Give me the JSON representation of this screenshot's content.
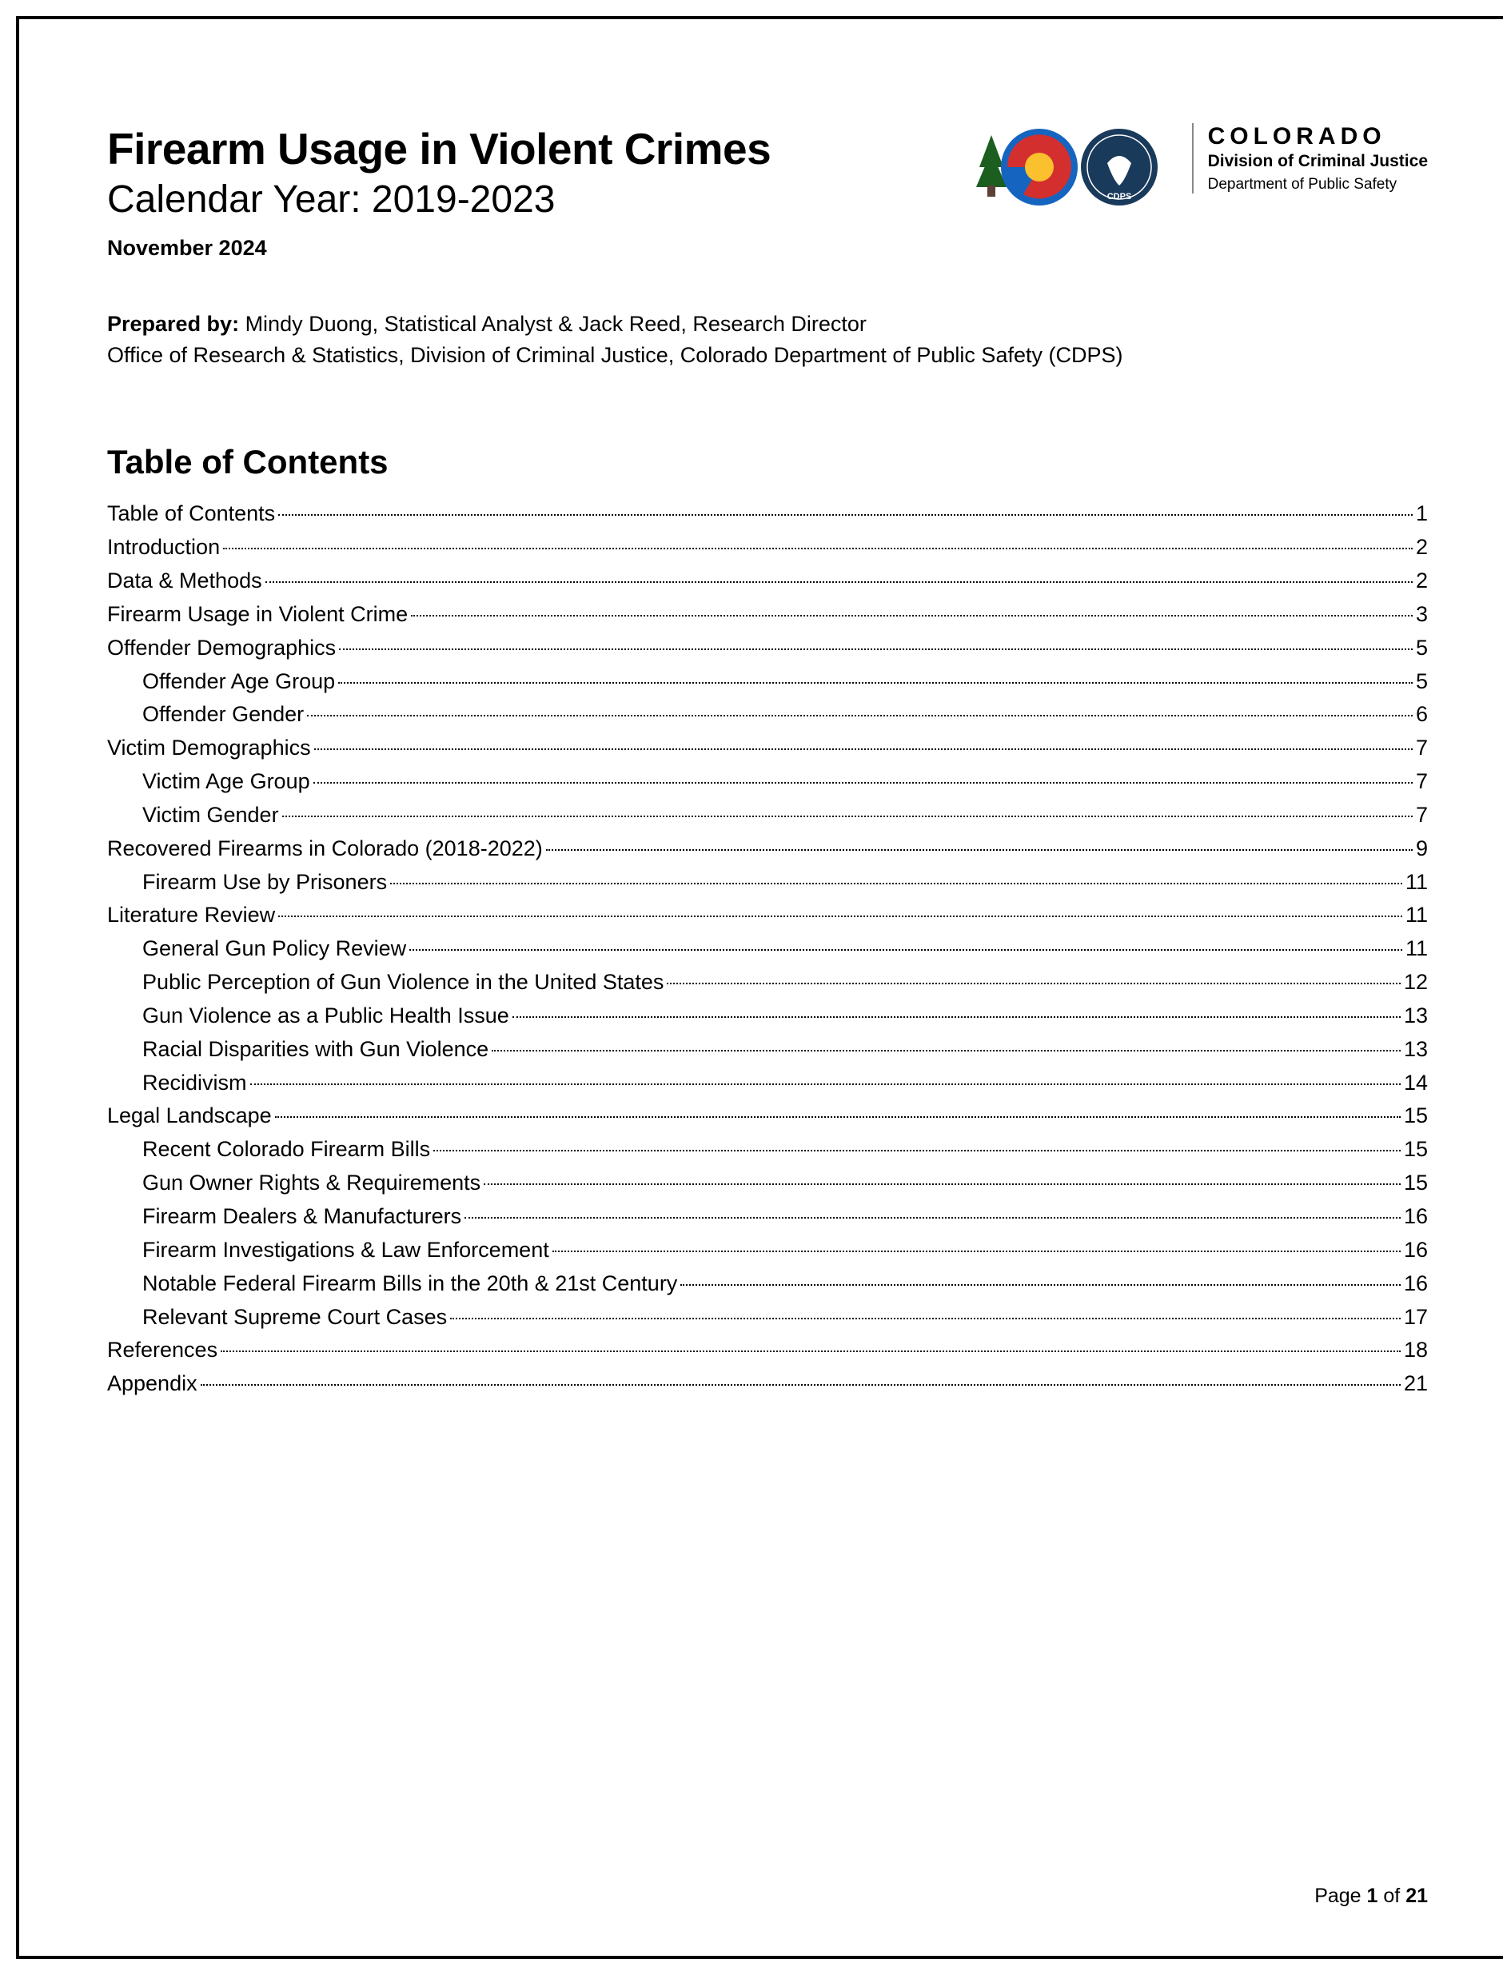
{
  "header": {
    "title_main": "Firearm Usage in Violent Crimes",
    "title_sub": "Calendar Year: 2019-2023",
    "title_date": "November 2024"
  },
  "logo": {
    "line1": "COLORADO",
    "line2": "Division of Criminal Justice",
    "line3": "Department of Public Safety",
    "colors": {
      "tree_green": "#1b5e20",
      "c_red": "#d32f2f",
      "c_yellow": "#fbc02d",
      "c_blue": "#1565c0",
      "c_white": "#ffffff",
      "cdps_navy": "#1a3a5c",
      "cdps_white": "#ffffff"
    }
  },
  "prepared": {
    "label": "Prepared by:",
    "authors": " Mindy Duong, Statistical Analyst & Jack Reed, Research Director",
    "office": "Office of Research & Statistics, Division of Criminal Justice, Colorado Department of Public Safety (CDPS)"
  },
  "toc": {
    "heading": "Table of Contents",
    "entries": [
      {
        "label": "Table of Contents",
        "page": "1",
        "indent": 0
      },
      {
        "label": "Introduction",
        "page": "2",
        "indent": 0
      },
      {
        "label": "Data & Methods",
        "page": "2",
        "indent": 0
      },
      {
        "label": "Firearm Usage in Violent Crime",
        "page": "3",
        "indent": 0
      },
      {
        "label": "Offender Demographics",
        "page": "5",
        "indent": 0
      },
      {
        "label": "Offender Age Group",
        "page": "5",
        "indent": 1
      },
      {
        "label": "Offender Gender",
        "page": "6",
        "indent": 1
      },
      {
        "label": "Victim Demographics",
        "page": "7",
        "indent": 0
      },
      {
        "label": "Victim Age Group",
        "page": "7",
        "indent": 1
      },
      {
        "label": "Victim Gender",
        "page": "7",
        "indent": 1
      },
      {
        "label": "Recovered Firearms in Colorado (2018-2022)",
        "page": "9",
        "indent": 0
      },
      {
        "label": "Firearm Use by Prisoners",
        "page": "11",
        "indent": 1
      },
      {
        "label": "Literature Review",
        "page": "11",
        "indent": 0
      },
      {
        "label": "General Gun Policy Review",
        "page": "11",
        "indent": 1
      },
      {
        "label": "Public Perception of Gun Violence in the United States",
        "page": "12",
        "indent": 1
      },
      {
        "label": "Gun Violence as a Public Health Issue",
        "page": "13",
        "indent": 1
      },
      {
        "label": "Racial Disparities with Gun Violence",
        "page": "13",
        "indent": 1
      },
      {
        "label": "Recidivism",
        "page": "14",
        "indent": 1
      },
      {
        "label": "Legal Landscape",
        "page": "15",
        "indent": 0
      },
      {
        "label": "Recent Colorado Firearm Bills",
        "page": "15",
        "indent": 1
      },
      {
        "label": "Gun Owner Rights & Requirements",
        "page": "15",
        "indent": 1
      },
      {
        "label": "Firearm Dealers & Manufacturers",
        "page": "16",
        "indent": 1
      },
      {
        "label": "Firearm Investigations & Law Enforcement",
        "page": "16",
        "indent": 1
      },
      {
        "label": "Notable Federal Firearm Bills in the 20th & 21st Century",
        "page": "16",
        "indent": 1
      },
      {
        "label": "Relevant Supreme Court Cases",
        "page": "17",
        "indent": 1
      },
      {
        "label": "References",
        "page": "18",
        "indent": 0
      },
      {
        "label": "Appendix",
        "page": "21",
        "indent": 0
      }
    ]
  },
  "footer": {
    "prefix": "Page ",
    "current": "1",
    "middle": " of ",
    "total": "21"
  }
}
